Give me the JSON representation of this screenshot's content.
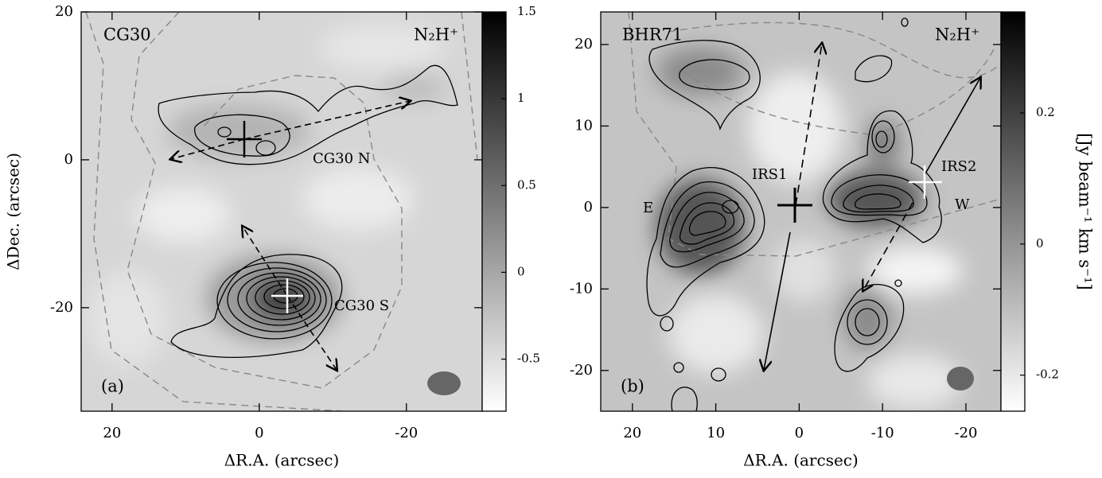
{
  "chart_data": [
    {
      "type": "contour-map",
      "panel_label": "(a)",
      "source": "CG30",
      "line": "N₂H⁺",
      "xlabel": "ΔR.A. (arcsec)",
      "ylabel": "ΔDec. (arcsec)",
      "xlim": [
        24.2,
        -30.3
      ],
      "ylim": [
        -34,
        20
      ],
      "xticks": [
        20,
        0,
        -20
      ],
      "yticks": [
        20,
        0,
        -20
      ],
      "colorbar": {
        "lim": [
          -0.8,
          1.5
        ],
        "ticks": [
          1.5,
          1,
          0.5,
          0,
          -0.5
        ]
      },
      "annotations": [
        "CG30 N",
        "CG30 S"
      ]
    },
    {
      "type": "contour-map",
      "panel_label": "(b)",
      "source": "BHR71",
      "line": "N₂H⁺",
      "xlabel": "ΔR.A. (arcsec)",
      "xlim": [
        23.8,
        -24.2
      ],
      "ylim": [
        -25,
        24
      ],
      "xticks": [
        20,
        10,
        0,
        -10,
        -20
      ],
      "yticks": [
        20,
        10,
        0,
        -10,
        -20
      ],
      "colorbar": {
        "lim": [
          -0.255,
          0.354
        ],
        "ticks": [
          0.2,
          0,
          -0.2
        ],
        "label": "[Jy beam⁻¹ km s⁻¹]"
      },
      "annotations": [
        "IRS1",
        "IRS2",
        "E",
        "W"
      ]
    }
  ]
}
